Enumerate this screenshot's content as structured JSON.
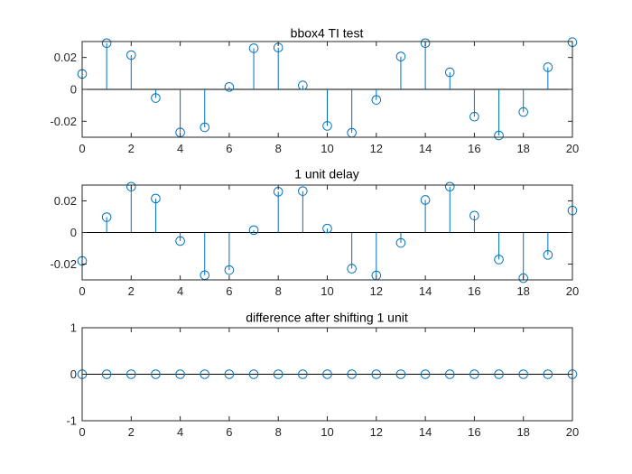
{
  "colors": {
    "series": "#0072BD",
    "axes": "#262626",
    "background": "#ffffff"
  },
  "chart_data": [
    {
      "type": "stem",
      "title": "bbox4 TI test",
      "xlabel": "",
      "ylabel": "",
      "xlim": [
        0,
        20
      ],
      "ylim": [
        -0.03,
        0.03
      ],
      "xticks": [
        0,
        2,
        4,
        6,
        8,
        10,
        12,
        14,
        16,
        18,
        20
      ],
      "yticks": [
        0.02,
        0,
        -0.02
      ],
      "yticklabels": [
        "0.02",
        "0",
        "-0.02"
      ],
      "grid": false,
      "marker": "circle-open",
      "x": [
        0,
        1,
        2,
        3,
        4,
        5,
        6,
        7,
        8,
        9,
        10,
        11,
        12,
        13,
        14,
        15,
        16,
        17,
        18,
        19,
        20
      ],
      "values": [
        0.0097,
        0.029,
        0.0215,
        -0.0054,
        -0.027,
        -0.0238,
        0.0015,
        0.0258,
        0.0262,
        0.0025,
        -0.0229,
        -0.0272,
        -0.0066,
        0.0206,
        0.029,
        0.0107,
        -0.0171,
        -0.0289,
        -0.0142,
        0.0139,
        0.0296
      ]
    },
    {
      "type": "stem",
      "title": "1 unit delay",
      "xlabel": "",
      "ylabel": "",
      "xlim": [
        0,
        20
      ],
      "ylim": [
        -0.03,
        0.03
      ],
      "xticks": [
        0,
        2,
        4,
        6,
        8,
        10,
        12,
        14,
        16,
        18,
        20
      ],
      "yticks": [
        0.02,
        0,
        -0.02
      ],
      "yticklabels": [
        "0.02",
        "0",
        "-0.02"
      ],
      "grid": false,
      "marker": "circle-open",
      "x": [
        0,
        1,
        2,
        3,
        4,
        5,
        6,
        7,
        8,
        9,
        10,
        11,
        12,
        13,
        14,
        15,
        16,
        17,
        18,
        19,
        20
      ],
      "values": [
        -0.018,
        0.0097,
        0.029,
        0.0215,
        -0.0054,
        -0.027,
        -0.0238,
        0.0015,
        0.0258,
        0.0262,
        0.0025,
        -0.0229,
        -0.0272,
        -0.0066,
        0.0206,
        0.029,
        0.0107,
        -0.0171,
        -0.0289,
        -0.0142,
        0.0139
      ]
    },
    {
      "type": "stem",
      "title": "difference after shifting 1 unit",
      "xlabel": "",
      "ylabel": "",
      "xlim": [
        0,
        20
      ],
      "ylim": [
        -1,
        1
      ],
      "xticks": [
        0,
        2,
        4,
        6,
        8,
        10,
        12,
        14,
        16,
        18,
        20
      ],
      "yticks": [
        1,
        0,
        -1
      ],
      "yticklabels": [
        "1",
        "0",
        "-1"
      ],
      "grid": false,
      "marker": "circle-open",
      "x": [
        0,
        1,
        2,
        3,
        4,
        5,
        6,
        7,
        8,
        9,
        10,
        11,
        12,
        13,
        14,
        15,
        16,
        17,
        18,
        19,
        20
      ],
      "values": [
        0,
        0,
        0,
        0,
        0,
        0,
        0,
        0,
        0,
        0,
        0,
        0,
        0,
        0,
        0,
        0,
        0,
        0,
        0,
        0,
        0
      ]
    }
  ]
}
